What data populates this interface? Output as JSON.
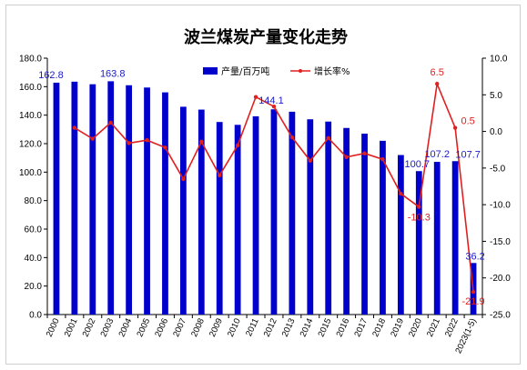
{
  "chart_data": {
    "type": "bar",
    "title": "波兰煤炭产量变化走势",
    "categories": [
      "2000",
      "2001",
      "2002",
      "2003",
      "2004",
      "2005",
      "2006",
      "2007",
      "2008",
      "2009",
      "2010",
      "2011",
      "2012",
      "2013",
      "2014",
      "2015",
      "2016",
      "2017",
      "2018",
      "2019",
      "2020",
      "2021",
      "2022",
      "2023(1-5)"
    ],
    "series": [
      {
        "name": "产量/百万吨",
        "type": "bar",
        "axis": "left",
        "color": "#0000cc",
        "values": [
          162.8,
          163.5,
          161.7,
          163.8,
          161.0,
          159.4,
          156.0,
          145.9,
          143.9,
          135.2,
          133.2,
          139.2,
          144.1,
          142.4,
          137.1,
          135.5,
          131.0,
          127.0,
          122.0,
          112.0,
          100.7,
          107.2,
          107.7,
          36.2
        ],
        "data_labels": {
          "0": "162.8",
          "3": "163.8",
          "12": "144.1",
          "20": "100.7",
          "21": "107.2",
          "22": "107.7",
          "23": "36.2"
        }
      },
      {
        "name": "增长率%",
        "type": "line",
        "axis": "right",
        "color": "#e02020",
        "values": [
          null,
          0.5,
          -1.0,
          1.2,
          -1.6,
          -1.2,
          -2.2,
          -6.5,
          -1.4,
          -6.0,
          -1.9,
          4.7,
          3.4,
          -0.8,
          -4.0,
          -0.9,
          -3.5,
          -3.0,
          -3.8,
          -8.5,
          -10.3,
          6.5,
          0.5,
          -21.9
        ],
        "data_labels": {
          "20": "-10.3",
          "21": "6.5",
          "22": "0.5",
          "23": "-21.9"
        }
      }
    ],
    "y_left": {
      "min": 0,
      "max": 180,
      "step": 20,
      "tick_labels": [
        "0.0",
        "20.0",
        "40.0",
        "60.0",
        "80.0",
        "100.0",
        "120.0",
        "140.0",
        "160.0",
        "180.0"
      ]
    },
    "y_right": {
      "min": -25,
      "max": 10,
      "step": 5,
      "tick_labels": [
        "-25.0",
        "-20.0",
        "-15.0",
        "-10.0",
        "-5.0",
        "0.0",
        "5.0",
        "10.0"
      ]
    },
    "legend": {
      "position": "top-center"
    },
    "grid": false
  }
}
